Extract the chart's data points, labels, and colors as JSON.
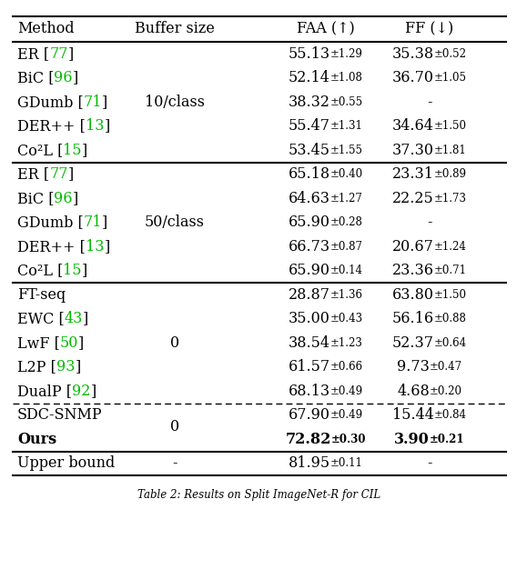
{
  "title": "Table 2: Results on Split ImageNet-R for CIL",
  "headers": [
    "Method",
    "Buffer size",
    "FAA (↑)",
    "FF (↓)"
  ],
  "groups": [
    {
      "buffer": "10/class",
      "rows": [
        {
          "method": "ER",
          "ref": "77",
          "faa": "55.13",
          "faa_std": "1.29",
          "ff": "35.38",
          "ff_std": "0.52",
          "bold_faa": false,
          "bold_ff": false
        },
        {
          "method": "BiC",
          "ref": "96",
          "faa": "52.14",
          "faa_std": "1.08",
          "ff": "36.70",
          "ff_std": "1.05",
          "bold_faa": false,
          "bold_ff": false
        },
        {
          "method": "GDumb",
          "ref": "71",
          "faa": "38.32",
          "faa_std": "0.55",
          "ff": "-",
          "ff_std": "",
          "bold_faa": false,
          "bold_ff": false
        },
        {
          "method": "DER++",
          "ref": "13",
          "faa": "55.47",
          "faa_std": "1.31",
          "ff": "34.64",
          "ff_std": "1.50",
          "bold_faa": false,
          "bold_ff": false
        },
        {
          "method": "Co²L",
          "ref": "15",
          "faa": "53.45",
          "faa_std": "1.55",
          "ff": "37.30",
          "ff_std": "1.81",
          "bold_faa": false,
          "bold_ff": false
        }
      ],
      "div_after": "solid"
    },
    {
      "buffer": "50/class",
      "rows": [
        {
          "method": "ER",
          "ref": "77",
          "faa": "65.18",
          "faa_std": "0.40",
          "ff": "23.31",
          "ff_std": "0.89",
          "bold_faa": false,
          "bold_ff": false
        },
        {
          "method": "BiC",
          "ref": "96",
          "faa": "64.63",
          "faa_std": "1.27",
          "ff": "22.25",
          "ff_std": "1.73",
          "bold_faa": false,
          "bold_ff": false
        },
        {
          "method": "GDumb",
          "ref": "71",
          "faa": "65.90",
          "faa_std": "0.28",
          "ff": "-",
          "ff_std": "",
          "bold_faa": false,
          "bold_ff": false
        },
        {
          "method": "DER++",
          "ref": "13",
          "faa": "66.73",
          "faa_std": "0.87",
          "ff": "20.67",
          "ff_std": "1.24",
          "bold_faa": false,
          "bold_ff": false
        },
        {
          "method": "Co²L",
          "ref": "15",
          "faa": "65.90",
          "faa_std": "0.14",
          "ff": "23.36",
          "ff_std": "0.71",
          "bold_faa": false,
          "bold_ff": false
        }
      ],
      "div_after": "solid"
    },
    {
      "buffer": "0",
      "rows": [
        {
          "method": "FT-seq",
          "ref": "",
          "faa": "28.87",
          "faa_std": "1.36",
          "ff": "63.80",
          "ff_std": "1.50",
          "bold_faa": false,
          "bold_ff": false
        },
        {
          "method": "EWC",
          "ref": "43",
          "faa": "35.00",
          "faa_std": "0.43",
          "ff": "56.16",
          "ff_std": "0.88",
          "bold_faa": false,
          "bold_ff": false
        },
        {
          "method": "LwF",
          "ref": "50",
          "faa": "38.54",
          "faa_std": "1.23",
          "ff": "52.37",
          "ff_std": "0.64",
          "bold_faa": false,
          "bold_ff": false
        },
        {
          "method": "L2P",
          "ref": "93",
          "faa": "61.57",
          "faa_std": "0.66",
          "ff": "9.73",
          "ff_std": "0.47",
          "bold_faa": false,
          "bold_ff": false
        },
        {
          "method": "DualP",
          "ref": "92",
          "faa": "68.13",
          "faa_std": "0.49",
          "ff": "4.68",
          "ff_std": "0.20",
          "bold_faa": false,
          "bold_ff": false
        }
      ],
      "div_after": "dashed"
    },
    {
      "buffer": "0",
      "rows": [
        {
          "method": "SDC-SNMP",
          "ref": "",
          "faa": "67.90",
          "faa_std": "0.49",
          "ff": "15.44",
          "ff_std": "0.84",
          "bold_faa": false,
          "bold_ff": false
        },
        {
          "method": "Ours",
          "ref": "",
          "faa": "72.82",
          "faa_std": "0.30",
          "ff": "3.90",
          "ff_std": "0.21",
          "bold_faa": true,
          "bold_ff": true
        }
      ],
      "div_after": "solid"
    },
    {
      "buffer": "-",
      "rows": [
        {
          "method": "Upper bound",
          "ref": "",
          "faa": "81.95",
          "faa_std": "0.11",
          "ff": "-",
          "ff_std": "",
          "bold_faa": false,
          "bold_ff": false
        }
      ],
      "div_after": "solid"
    }
  ],
  "ref_color": "#00bb00",
  "text_color": "#000000",
  "bg_color": "#ffffff"
}
